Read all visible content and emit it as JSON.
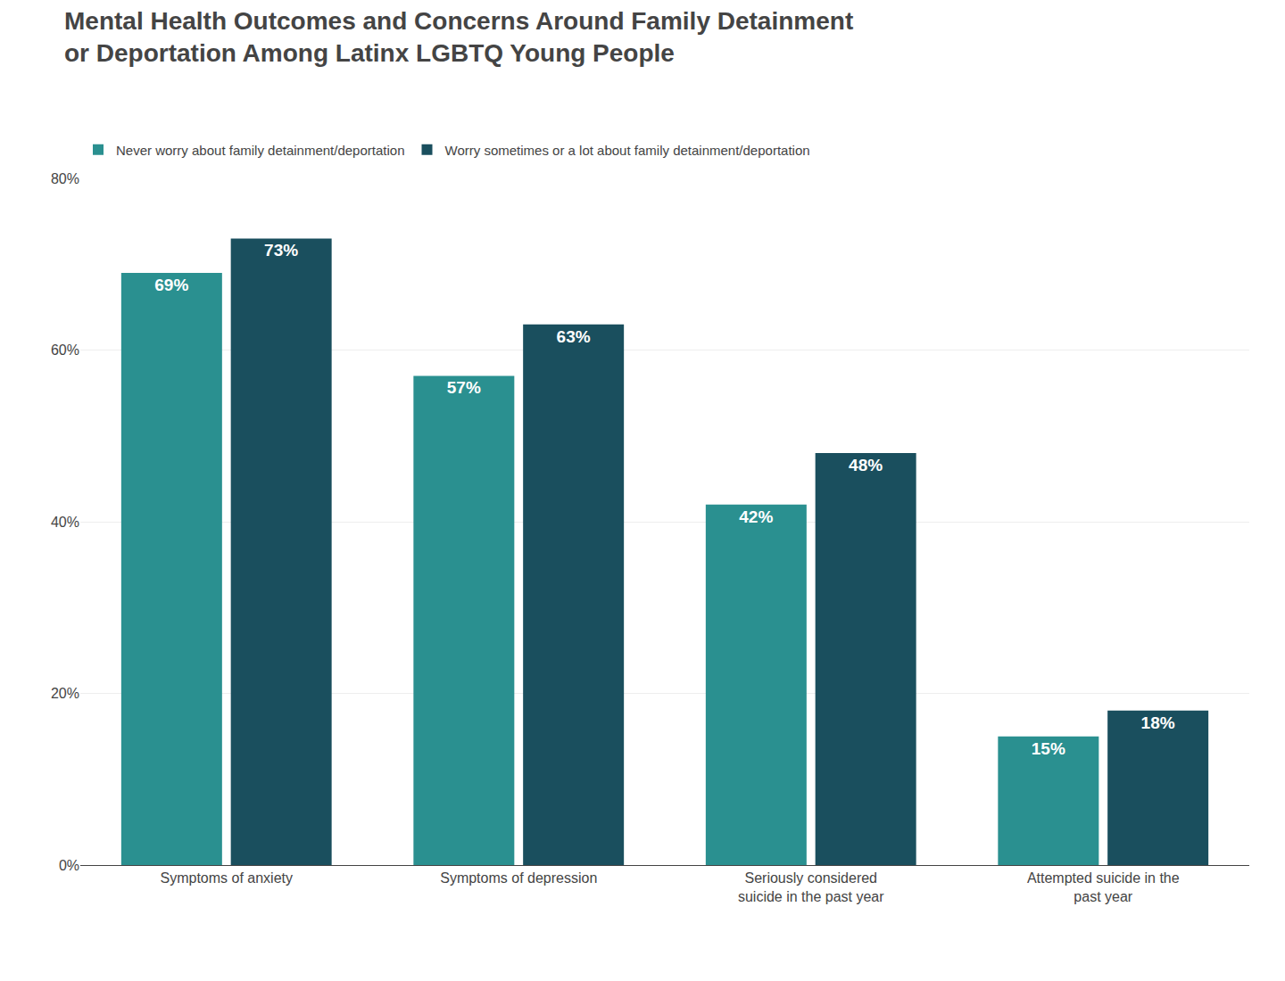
{
  "chart_data": {
    "type": "bar",
    "title": "Mental Health Outcomes and Concerns Around Family Detainment\nor Deportation Among Latinx LGBTQ Young People",
    "categories": [
      "Symptoms of anxiety",
      "Symptoms of depression",
      "Seriously considered\nsuicide in the past year",
      "Attempted suicide in the\npast year"
    ],
    "series": [
      {
        "name": "Never worry about family detainment/deportation",
        "color": "#2a9090",
        "values": [
          69,
          57,
          42,
          15
        ],
        "value_labels": [
          "69%",
          "57%",
          "42%",
          "15%"
        ]
      },
      {
        "name": "Worry sometimes or a lot about family detainment/deportation",
        "color": "#1a4f5e",
        "values": [
          73,
          63,
          48,
          18
        ],
        "value_labels": [
          "73%",
          "63%",
          "48%",
          "18%"
        ]
      }
    ],
    "ylim": [
      0,
      80
    ],
    "yticks": [
      {
        "value": 0,
        "label": "0%"
      },
      {
        "value": 20,
        "label": "20%"
      },
      {
        "value": 40,
        "label": "40%"
      },
      {
        "value": 60,
        "label": "60%"
      },
      {
        "value": 80,
        "label": "80%"
      }
    ],
    "grid": true,
    "legend": "upper left",
    "data_labels": true
  }
}
